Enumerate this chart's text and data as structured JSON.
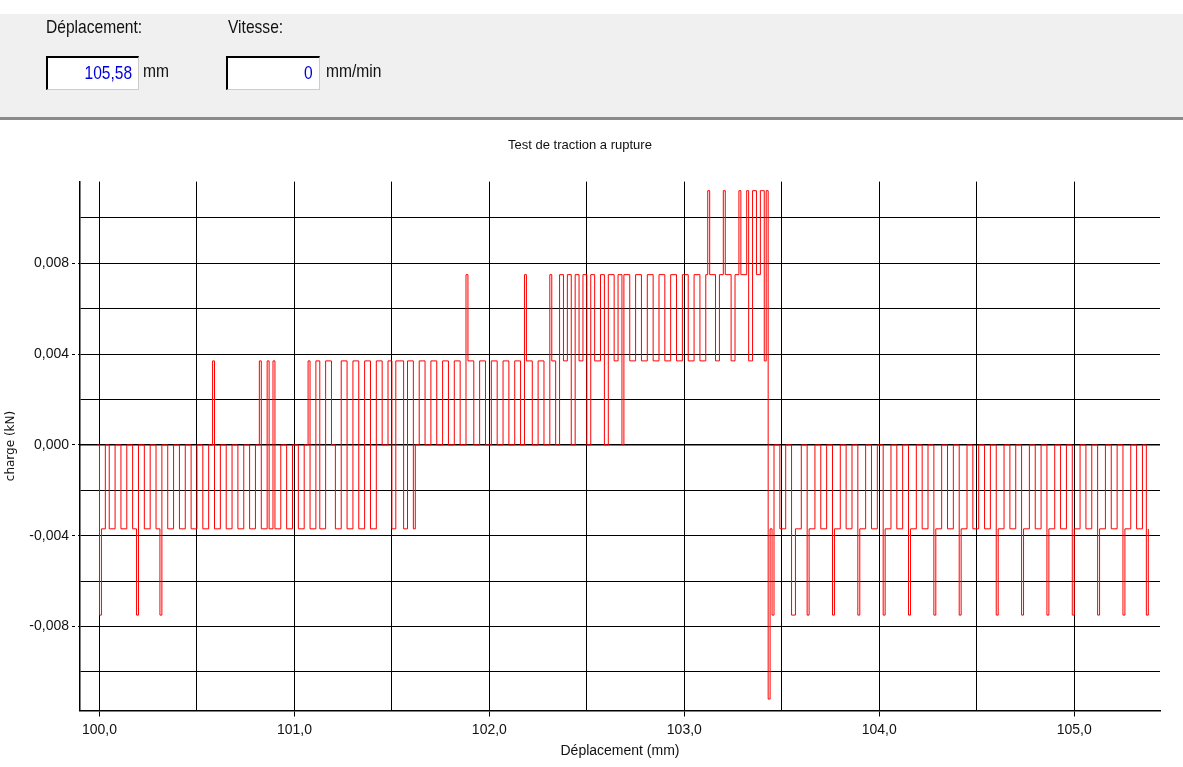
{
  "chart_data": {
    "type": "step",
    "title": "Test de traction a rupture",
    "xlabel": "Déplacement (mm)",
    "ylabel": "charge (kN)",
    "annotations": [
      "Déplacement:",
      "105,58",
      "mm",
      "Vitesse:",
      "0",
      "mm/min"
    ],
    "xlim": [
      99.9,
      105.44
    ],
    "ylim": [
      -0.0117,
      0.0116
    ],
    "xticks": [
      {
        "value": 100,
        "label": "100,0"
      },
      {
        "value": 100.5,
        "label": null
      },
      {
        "value": 101,
        "label": "101,0"
      },
      {
        "value": 101.5,
        "label": null
      },
      {
        "value": 102,
        "label": "102,0"
      },
      {
        "value": 102.5,
        "label": null
      },
      {
        "value": 103,
        "label": "103,0"
      },
      {
        "value": 103.5,
        "label": null
      },
      {
        "value": 104,
        "label": "104,0"
      },
      {
        "value": 104.5,
        "label": null
      },
      {
        "value": 105,
        "label": "105,0"
      }
    ],
    "yticks": [
      {
        "value": -0.01,
        "label": null
      },
      {
        "value": -0.008,
        "label": "-0,008"
      },
      {
        "value": -0.006,
        "label": null
      },
      {
        "value": -0.004,
        "label": "-0,004"
      },
      {
        "value": -0.002,
        "label": null
      },
      {
        "value": 0,
        "label": "0,000"
      },
      {
        "value": 0.002,
        "label": null
      },
      {
        "value": 0.004,
        "label": "0,004"
      },
      {
        "value": 0.006,
        "label": null
      },
      {
        "value": 0.008,
        "label": "0,008"
      },
      {
        "value": 0.01,
        "label": null
      }
    ],
    "grid": true,
    "line_style": "solid",
    "marker": "none",
    "legend": false,
    "ref_lines": [
      {
        "axis": "y",
        "value": 0,
        "color": "#000000",
        "line_style": "solid"
      }
    ],
    "series": [
      {
        "color": "#ff0000",
        "x": [
          99.99,
          100.0,
          100.01,
          100.03,
          100.05,
          100.08,
          100.11,
          100.14,
          100.17,
          100.19,
          100.2,
          100.23,
          100.26,
          100.29,
          100.31,
          100.32,
          100.35,
          100.38,
          100.41,
          100.44,
          100.47,
          100.5,
          100.53,
          100.56,
          100.58,
          100.59,
          100.62,
          100.65,
          100.68,
          100.71,
          100.74,
          100.77,
          100.8,
          100.82,
          100.83,
          100.86,
          100.87,
          100.89,
          100.9,
          100.93,
          100.96,
          100.99,
          101.02,
          101.05,
          101.07,
          101.08,
          101.11,
          101.13,
          101.16,
          101.19,
          101.21,
          101.24,
          101.27,
          101.3,
          101.33,
          101.36,
          101.39,
          101.42,
          101.45,
          101.48,
          101.5,
          101.52,
          101.56,
          101.58,
          101.61,
          101.62,
          101.64,
          101.67,
          101.7,
          101.73,
          101.76,
          101.79,
          101.82,
          101.85,
          101.88,
          101.89,
          101.92,
          101.95,
          101.98,
          102.01,
          102.04,
          102.07,
          102.1,
          102.13,
          102.16,
          102.18,
          102.19,
          102.22,
          102.25,
          102.28,
          102.31,
          102.32,
          102.34,
          102.36,
          102.38,
          102.4,
          102.42,
          102.44,
          102.46,
          102.48,
          102.5,
          102.52,
          102.54,
          102.57,
          102.59,
          102.61,
          102.64,
          102.66,
          102.68,
          102.69,
          102.72,
          102.75,
          102.78,
          102.81,
          102.84,
          102.87,
          102.9,
          102.93,
          102.96,
          102.99,
          103.02,
          103.05,
          103.08,
          103.11,
          103.12,
          103.13,
          103.16,
          103.18,
          103.2,
          103.21,
          103.24,
          103.26,
          103.28,
          103.29,
          103.32,
          103.33,
          103.35,
          103.37,
          103.39,
          103.41,
          103.42,
          103.43,
          103.44,
          103.45,
          103.46,
          103.49,
          103.52,
          103.55,
          103.57,
          103.6,
          103.63,
          103.64,
          103.67,
          103.7,
          103.73,
          103.76,
          103.77,
          103.8,
          103.83,
          103.86,
          103.89,
          103.9,
          103.93,
          103.96,
          103.99,
          104.02,
          104.03,
          104.06,
          104.09,
          104.12,
          104.15,
          104.16,
          104.19,
          104.22,
          104.25,
          104.28,
          104.29,
          104.32,
          104.35,
          104.38,
          104.41,
          104.42,
          104.45,
          104.48,
          104.51,
          104.54,
          104.57,
          104.6,
          104.61,
          104.64,
          104.67,
          104.7,
          104.73,
          104.74,
          104.77,
          104.8,
          104.83,
          104.86,
          104.87,
          104.9,
          104.93,
          104.96,
          104.99,
          105.0,
          105.03,
          105.06,
          105.09,
          105.12,
          105.13,
          105.16,
          105.19,
          105.22,
          105.25,
          105.26,
          105.29,
          105.32,
          105.35,
          105.37,
          105.38
        ],
        "values": [
          0,
          -0.0075,
          -0.0037,
          0,
          -0.0037,
          0,
          -0.0037,
          0,
          -0.0037,
          -0.0075,
          0,
          -0.0037,
          0,
          -0.0037,
          -0.0075,
          0,
          -0.0037,
          0,
          -0.0037,
          0,
          -0.0037,
          0,
          -0.0037,
          0,
          0.0037,
          -0.0037,
          0,
          -0.0037,
          0,
          -0.0037,
          0,
          -0.0037,
          0,
          0.0037,
          -0.0037,
          0.0037,
          -0.0037,
          0.0037,
          -0.0037,
          0,
          -0.0037,
          0,
          -0.0037,
          0,
          0.0037,
          -0.0037,
          0.0037,
          -0.0037,
          0.0037,
          0,
          -0.0037,
          0.0037,
          -0.0037,
          0.0037,
          -0.0037,
          0.0037,
          -0.0037,
          0.0037,
          0,
          0.0037,
          -0.0037,
          0.0037,
          -0.0037,
          0.0037,
          -0.0037,
          0,
          0.0037,
          0,
          0.0037,
          0,
          0.0037,
          0,
          0.0037,
          0,
          0.0075,
          0.0037,
          0,
          0.0037,
          0,
          0.0037,
          0,
          0.0037,
          0,
          0.0037,
          0,
          0.0075,
          0.0037,
          0,
          0.0037,
          0,
          0.0075,
          0.0037,
          0,
          0.0075,
          0.0037,
          0.0075,
          0,
          0.0075,
          0.0037,
          0.0075,
          0,
          0.0075,
          0.0037,
          0.0075,
          0,
          0.0075,
          0.0037,
          0.0075,
          0,
          0.0075,
          0.0037,
          0.0075,
          0.0037,
          0.0075,
          0.0037,
          0.0075,
          0.0037,
          0.0075,
          0.0037,
          0.0075,
          0.0037,
          0.0075,
          0.0037,
          0.0075,
          0.0112,
          0.0075,
          0.0037,
          0.0075,
          0.0112,
          0.0075,
          0.0037,
          0.0075,
          0.0112,
          0.0075,
          0.0112,
          0.0037,
          0.0112,
          0.0075,
          0.0112,
          0.0037,
          0.0112,
          -0.0112,
          -0.0037,
          -0.0075,
          0,
          -0.0037,
          0,
          -0.0075,
          -0.0037,
          0,
          -0.0075,
          -0.0037,
          0,
          -0.0037,
          0,
          -0.0075,
          -0.0037,
          0,
          -0.0037,
          0,
          -0.0075,
          -0.0037,
          0,
          -0.0037,
          0,
          -0.0075,
          -0.0037,
          0,
          -0.0037,
          0,
          -0.0075,
          -0.0037,
          0,
          -0.0037,
          0,
          -0.0075,
          -0.0037,
          0,
          -0.0037,
          0,
          -0.0075,
          -0.0037,
          0,
          -0.0037,
          0,
          -0.0037,
          0,
          -0.0075,
          -0.0037,
          0,
          -0.0037,
          0,
          -0.0075,
          -0.0037,
          0,
          -0.0037,
          0,
          -0.0075,
          -0.0037,
          0,
          -0.0037,
          0,
          -0.0075,
          -0.0037,
          0,
          -0.0037,
          0,
          -0.0075,
          -0.0037,
          0,
          -0.0037,
          0,
          -0.0075,
          -0.0037,
          0,
          -0.0037,
          0,
          -0.0075,
          -0.0037
        ]
      }
    ]
  }
}
